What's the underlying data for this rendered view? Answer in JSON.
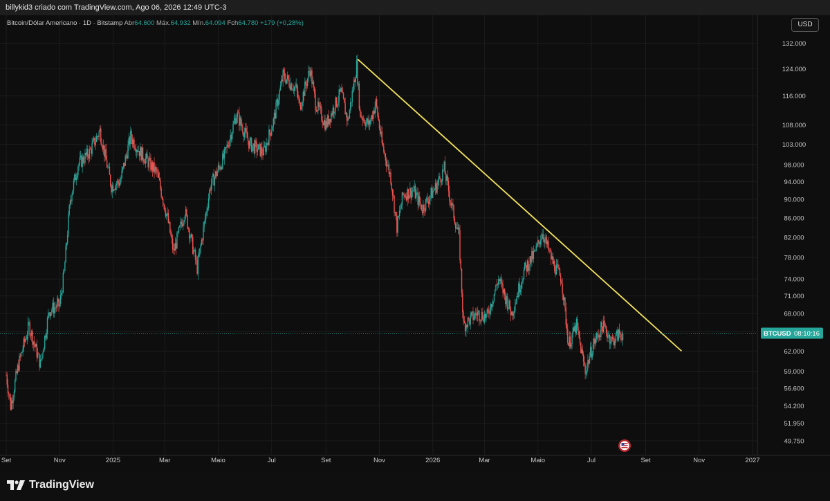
{
  "header": {
    "attribution": "billykid3 criado com TradingView.com, Ago 06, 2026 12:49 UTC-3"
  },
  "legend": {
    "symbol": "Bitcoin/Dólar Americano · 1D · Bitstamp",
    "open_label": "Abr",
    "open": "64.600",
    "high_label": "Máx.",
    "high": "64.932",
    "low_label": "Mín.",
    "low": "64.094",
    "close_label": "Fch",
    "close": "64.780",
    "change": "+179 (+0,28%)"
  },
  "currency_button": "USD",
  "price_tag": {
    "symbol": "BTCUSD",
    "countdown": "08:10:16"
  },
  "footer": {
    "brand": "TradingView"
  },
  "colors": {
    "up": "#26a69a",
    "down": "#ef5350",
    "trendline": "#f5e35b",
    "grid": "#1c1c1c",
    "axis_text": "#c9c9c9"
  },
  "chart_data": {
    "type": "candlestick",
    "title": "Bitcoin/Dólar Americano · 1D · Bitstamp",
    "y_scale": "log",
    "y_ticks": [
      "132.000",
      "124.000",
      "116.000",
      "108.000",
      "103.000",
      "98.000",
      "94.000",
      "90.000",
      "86.000",
      "82.000",
      "78.000",
      "74.000",
      "71.000",
      "68.000",
      "65.000",
      "62.000",
      "59.000",
      "56.600",
      "54.200",
      "51.950",
      "49.750"
    ],
    "y_tick_values": [
      132000,
      124000,
      116000,
      108000,
      103000,
      98000,
      94000,
      90000,
      86000,
      82000,
      78000,
      74000,
      71000,
      68000,
      65000,
      62000,
      59000,
      56600,
      54200,
      51950,
      49750
    ],
    "ylim": [
      48000,
      136000
    ],
    "x_ticks": [
      "Set",
      "Nov",
      "2025",
      "Mar",
      "Maio",
      "Jul",
      "Set",
      "Nov",
      "2026",
      "Mar",
      "Maio",
      "Jul",
      "Set",
      "Nov",
      "2027"
    ],
    "x_tick_dates": [
      "2024-09-01",
      "2024-11-01",
      "2025-01-01",
      "2025-03-01",
      "2025-05-01",
      "2025-07-01",
      "2025-09-01",
      "2025-11-01",
      "2026-01-01",
      "2026-03-01",
      "2026-05-01",
      "2026-07-01",
      "2026-09-01",
      "2026-11-01",
      "2027-01-01"
    ],
    "series": [
      {
        "kind": "price_path",
        "points": [
          [
            "2024-09-01",
            58500
          ],
          [
            "2024-09-06",
            54200
          ],
          [
            "2024-09-15",
            60000
          ],
          [
            "2024-09-27",
            66000
          ],
          [
            "2024-10-10",
            60000
          ],
          [
            "2024-10-20",
            68500
          ],
          [
            "2024-11-01",
            69500
          ],
          [
            "2024-11-06",
            75000
          ],
          [
            "2024-11-13",
            90000
          ],
          [
            "2024-11-22",
            98000
          ],
          [
            "2024-12-05",
            101000
          ],
          [
            "2024-12-17",
            106500
          ],
          [
            "2024-12-30",
            93000
          ],
          [
            "2025-01-09",
            94000
          ],
          [
            "2025-01-21",
            105000
          ],
          [
            "2025-02-01",
            101000
          ],
          [
            "2025-02-20",
            96000
          ],
          [
            "2025-03-04",
            86000
          ],
          [
            "2025-03-11",
            79000
          ],
          [
            "2025-03-24",
            87500
          ],
          [
            "2025-04-07",
            76000
          ],
          [
            "2025-04-22",
            93000
          ],
          [
            "2025-05-08",
            100000
          ],
          [
            "2025-05-22",
            111000
          ],
          [
            "2025-06-06",
            103000
          ],
          [
            "2025-06-22",
            101000
          ],
          [
            "2025-07-03",
            109000
          ],
          [
            "2025-07-14",
            122000
          ],
          [
            "2025-07-29",
            118000
          ],
          [
            "2025-08-02",
            113000
          ],
          [
            "2025-08-14",
            124000
          ],
          [
            "2025-08-20",
            114000
          ],
          [
            "2025-09-01",
            108000
          ],
          [
            "2025-09-18",
            117000
          ],
          [
            "2025-09-26",
            109000
          ],
          [
            "2025-10-06",
            125000
          ],
          [
            "2025-10-10",
            111000
          ],
          [
            "2025-10-20",
            108000
          ],
          [
            "2025-10-28",
            114000
          ],
          [
            "2025-11-04",
            103000
          ],
          [
            "2025-11-14",
            95000
          ],
          [
            "2025-11-21",
            84000
          ],
          [
            "2025-11-28",
            91000
          ],
          [
            "2025-12-10",
            92000
          ],
          [
            "2025-12-20",
            88000
          ],
          [
            "2026-01-05",
            93000
          ],
          [
            "2026-01-14",
            97000
          ],
          [
            "2026-01-22",
            89000
          ],
          [
            "2026-01-31",
            82000
          ],
          [
            "2026-02-05",
            66000
          ],
          [
            "2026-02-20",
            68000
          ],
          [
            "2026-03-04",
            67500
          ],
          [
            "2026-03-17",
            74000
          ],
          [
            "2026-04-01",
            68000
          ],
          [
            "2026-04-15",
            75500
          ],
          [
            "2026-04-28",
            79000
          ],
          [
            "2026-05-06",
            83000
          ],
          [
            "2026-05-18",
            77000
          ],
          [
            "2026-05-28",
            74000
          ],
          [
            "2026-06-05",
            63000
          ],
          [
            "2026-06-14",
            66000
          ],
          [
            "2026-06-24",
            59000
          ],
          [
            "2026-07-03",
            63000
          ],
          [
            "2026-07-14",
            66000
          ],
          [
            "2026-07-25",
            63500
          ],
          [
            "2026-08-01",
            64600
          ],
          [
            "2026-08-06",
            64780
          ]
        ]
      }
    ],
    "trendline": {
      "from": [
        "2025-10-07",
        127000
      ],
      "to": [
        "2026-10-12",
        62000
      ]
    },
    "last_price": 64780
  }
}
